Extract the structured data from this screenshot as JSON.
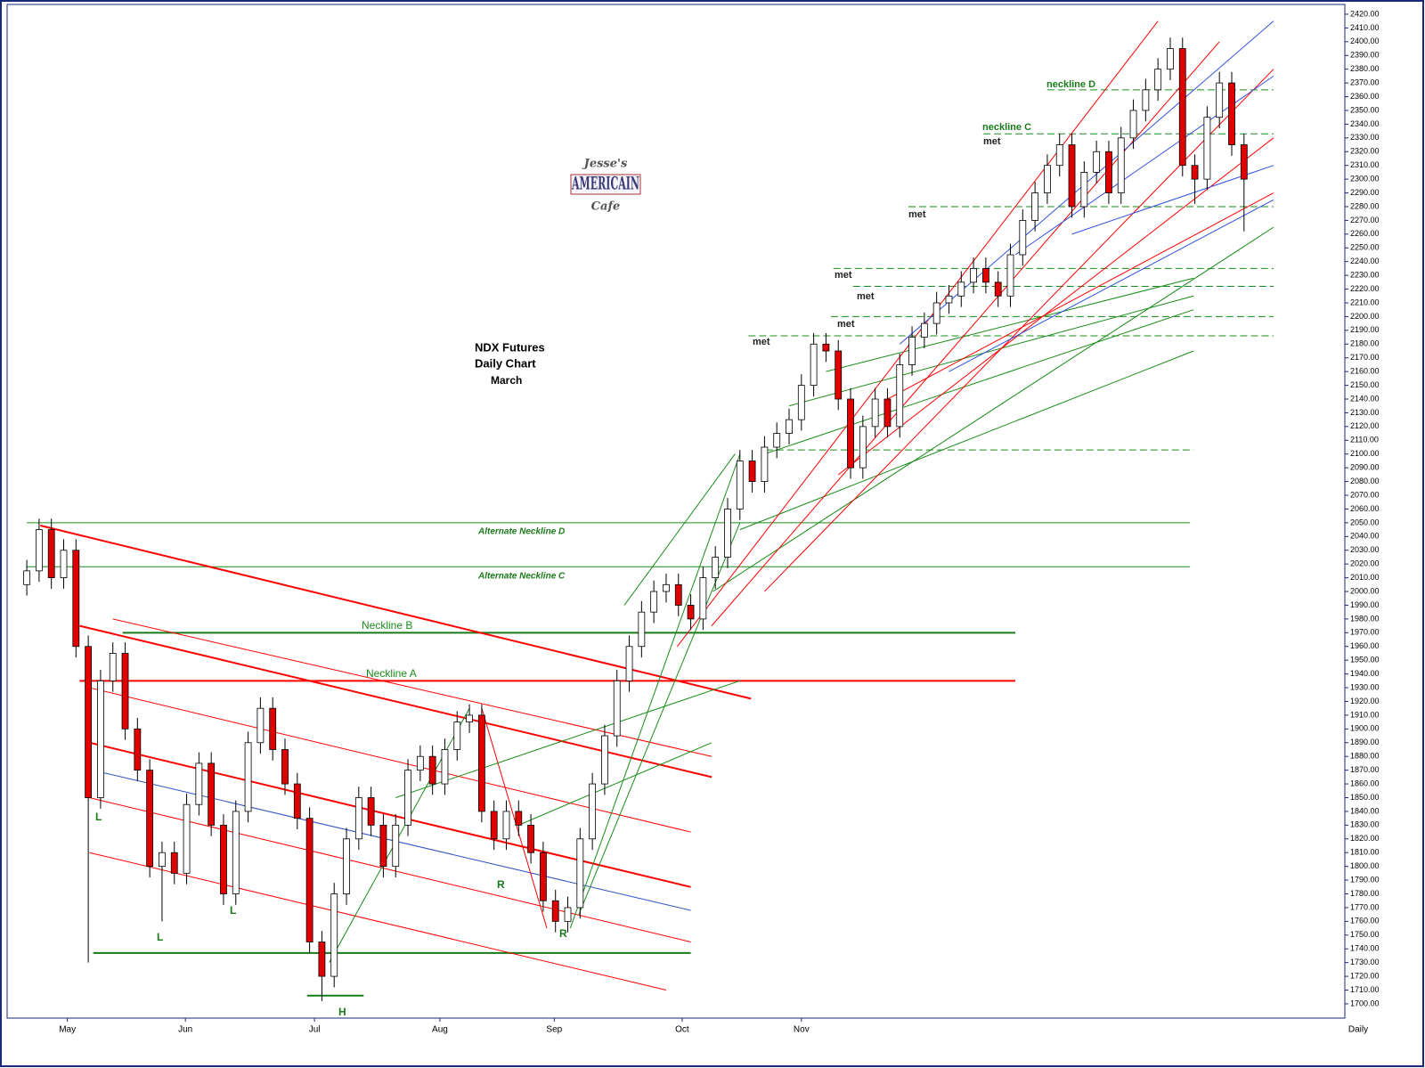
{
  "chart_data": {
    "type": "candlestick",
    "period": "Daily",
    "up_color": "#ffffff",
    "down_color": "#e00000",
    "categories": [
      null,
      null,
      null,
      null,
      null,
      null,
      null,
      null,
      null,
      null,
      null,
      null,
      null,
      null,
      null,
      null,
      null,
      null,
      null,
      null,
      null,
      null,
      null,
      null,
      null,
      null,
      null,
      null,
      null,
      null,
      null,
      null,
      null,
      null,
      null,
      null,
      null,
      null,
      null,
      null,
      null,
      null,
      null,
      null,
      null,
      null,
      null,
      null,
      null,
      null,
      null,
      null,
      null,
      null,
      null,
      null,
      null,
      null,
      null,
      null,
      null,
      null,
      null,
      null,
      null,
      null,
      null,
      null,
      null,
      null,
      null,
      null,
      null,
      null,
      null,
      null,
      null,
      null,
      null,
      null,
      null,
      null,
      null,
      null,
      null,
      null,
      null,
      null,
      null,
      null,
      null,
      null,
      null,
      null,
      null,
      null,
      null,
      null,
      null,
      null
    ],
    "open": [
      2005,
      2015,
      2045,
      2010,
      2030,
      1960,
      1850,
      1935,
      1955,
      1900,
      1870,
      1800,
      1810,
      1795,
      1845,
      1875,
      1830,
      1780,
      1840,
      1890,
      1915,
      1885,
      1860,
      1835,
      1745,
      1720,
      1780,
      1820,
      1850,
      1830,
      1800,
      1830,
      1870,
      1880,
      1860,
      1885,
      1905,
      1910,
      1840,
      1820,
      1840,
      1830,
      1810,
      1775,
      1760,
      1770,
      1820,
      1860,
      1895,
      1935,
      1960,
      1985,
      2000,
      2005,
      1990,
      1980,
      2010,
      2025,
      2060,
      2095,
      2080,
      2105,
      2115,
      2125,
      2150,
      2180,
      2175,
      2140,
      2090,
      2120,
      2140,
      2120,
      2165,
      2185,
      2195,
      2210,
      2215,
      2225,
      2235,
      2225,
      2215,
      2245,
      2270,
      2290,
      2310,
      2325,
      2280,
      2305,
      2320,
      2290,
      2330,
      2350,
      2365,
      2380,
      2395,
      2310,
      2300,
      2345,
      2370,
      2325
    ],
    "high": [
      2023,
      2053,
      2053,
      2038,
      2038,
      1968,
      1943,
      1963,
      1963,
      1908,
      1878,
      1818,
      1818,
      1853,
      1883,
      1883,
      1838,
      1848,
      1898,
      1923,
      1923,
      1893,
      1868,
      1843,
      1753,
      1788,
      1828,
      1858,
      1858,
      1838,
      1838,
      1878,
      1888,
      1888,
      1893,
      1913,
      1918,
      1918,
      1848,
      1848,
      1848,
      1838,
      1818,
      1783,
      1778,
      1828,
      1868,
      1903,
      1943,
      1968,
      1993,
      2008,
      2013,
      2013,
      1998,
      2018,
      2033,
      2068,
      2103,
      2103,
      2113,
      2123,
      2133,
      2158,
      2188,
      2188,
      2183,
      2148,
      2128,
      2148,
      2148,
      2173,
      2193,
      2203,
      2218,
      2223,
      2233,
      2243,
      2243,
      2233,
      2253,
      2278,
      2298,
      2318,
      2333,
      2333,
      2313,
      2328,
      2328,
      2338,
      2358,
      2373,
      2388,
      2403,
      2403,
      2318,
      2353,
      2378,
      2378,
      2333
    ],
    "low": [
      1997,
      2007,
      2002,
      2002,
      1952,
      1730,
      1842,
      1927,
      1892,
      1862,
      1792,
      1760,
      1787,
      1787,
      1837,
      1822,
      1772,
      1772,
      1832,
      1882,
      1877,
      1852,
      1827,
      1737,
      1702,
      1712,
      1772,
      1812,
      1822,
      1792,
      1792,
      1822,
      1862,
      1852,
      1852,
      1877,
      1897,
      1832,
      1812,
      1812,
      1822,
      1802,
      1767,
      1752,
      1752,
      1762,
      1812,
      1852,
      1887,
      1927,
      1952,
      1977,
      1992,
      1982,
      1972,
      1972,
      2002,
      2017,
      2052,
      2072,
      2072,
      2097,
      2107,
      2117,
      2142,
      2167,
      2132,
      2082,
      2082,
      2112,
      2112,
      2112,
      2157,
      2177,
      2187,
      2202,
      2207,
      2217,
      2217,
      2207,
      2207,
      2237,
      2262,
      2282,
      2302,
      2272,
      2272,
      2297,
      2282,
      2282,
      2322,
      2342,
      2357,
      2372,
      2302,
      2282,
      2292,
      2337,
      2317,
      2262
    ],
    "close": [
      2015,
      2045,
      2010,
      2030,
      1960,
      1850,
      1935,
      1955,
      1900,
      1870,
      1800,
      1810,
      1795,
      1845,
      1875,
      1830,
      1780,
      1840,
      1890,
      1915,
      1885,
      1860,
      1835,
      1745,
      1720,
      1780,
      1820,
      1850,
      1830,
      1800,
      1830,
      1870,
      1880,
      1860,
      1885,
      1905,
      1910,
      1840,
      1820,
      1840,
      1830,
      1810,
      1775,
      1760,
      1770,
      1820,
      1860,
      1895,
      1935,
      1960,
      1985,
      2000,
      2005,
      1990,
      1980,
      2010,
      2025,
      2060,
      2095,
      2080,
      2105,
      2115,
      2125,
      2150,
      2180,
      2175,
      2140,
      2090,
      2120,
      2140,
      2120,
      2165,
      2185,
      2195,
      2210,
      2215,
      2225,
      2235,
      2225,
      2215,
      2245,
      2270,
      2290,
      2310,
      2325,
      2280,
      2305,
      2320,
      2290,
      2330,
      2350,
      2365,
      2380,
      2395,
      2310,
      2300,
      2345,
      2370,
      2325,
      2300
    ],
    "xlim": [
      -1.6,
      107.2
    ],
    "xticks": [
      {
        "value": 3.3,
        "label": "May"
      },
      {
        "value": 12.9,
        "label": "Jun"
      },
      {
        "value": 23.4,
        "label": "Jul"
      },
      {
        "value": 33.6,
        "label": "Aug"
      },
      {
        "value": 42.9,
        "label": "Sep"
      },
      {
        "value": 53.3,
        "label": "Oct"
      },
      {
        "value": 63,
        "label": "Nov"
      }
    ],
    "ylim": [
      1689.6,
      2427.1
    ],
    "yticks": [
      {
        "value": 1700,
        "label": "1700.00"
      },
      {
        "value": 1710,
        "label": "1710.00"
      },
      {
        "value": 1720,
        "label": "1720.00"
      },
      {
        "value": 1730,
        "label": "1730.00"
      },
      {
        "value": 1740,
        "label": "1740.00"
      },
      {
        "value": 1750,
        "label": "1750.00"
      },
      {
        "value": 1760,
        "label": "1760.00"
      },
      {
        "value": 1770,
        "label": "1770.00"
      },
      {
        "value": 1780,
        "label": "1780.00"
      },
      {
        "value": 1790,
        "label": "1790.00"
      },
      {
        "value": 1800,
        "label": "1800.00"
      },
      {
        "value": 1810,
        "label": "1810.00"
      },
      {
        "value": 1820,
        "label": "1820.00"
      },
      {
        "value": 1830,
        "label": "1830.00"
      },
      {
        "value": 1840,
        "label": "1840.00"
      },
      {
        "value": 1850,
        "label": "1850.00"
      },
      {
        "value": 1860,
        "label": "1860.00"
      },
      {
        "value": 1870,
        "label": "1870.00"
      },
      {
        "value": 1880,
        "label": "1880.00"
      },
      {
        "value": 1890,
        "label": "1890.00"
      },
      {
        "value": 1900,
        "label": "1900.00"
      },
      {
        "value": 1910,
        "label": "1910.00"
      },
      {
        "value": 1920,
        "label": "1920.00"
      },
      {
        "value": 1930,
        "label": "1930.00"
      },
      {
        "value": 1940,
        "label": "1940.00"
      },
      {
        "value": 1950,
        "label": "1950.00"
      },
      {
        "value": 1960,
        "label": "1960.00"
      },
      {
        "value": 1970,
        "label": "1970.00"
      },
      {
        "value": 1980,
        "label": "1980.00"
      },
      {
        "value": 1990,
        "label": "1990.00"
      },
      {
        "value": 2000,
        "label": "2000.00"
      },
      {
        "value": 2010,
        "label": "2010.00"
      },
      {
        "value": 2020,
        "label": "2020.00"
      },
      {
        "value": 2030,
        "label": "2030.00"
      },
      {
        "value": 2040,
        "label": "2040.00"
      },
      {
        "value": 2050,
        "label": "2050.00"
      },
      {
        "value": 2060,
        "label": "2060.00"
      },
      {
        "value": 2070,
        "label": "2070.00"
      },
      {
        "value": 2080,
        "label": "2080.00"
      },
      {
        "value": 2090,
        "label": "2090.00"
      },
      {
        "value": 2100,
        "label": "2100.00"
      },
      {
        "value": 2110,
        "label": "2110.00"
      },
      {
        "value": 2120,
        "label": "2120.00"
      },
      {
        "value": 2130,
        "label": "2130.00"
      },
      {
        "value": 2140,
        "label": "2140.00"
      },
      {
        "value": 2150,
        "label": "2150.00"
      },
      {
        "value": 2160,
        "label": "2160.00"
      },
      {
        "value": 2170,
        "label": "2170.00"
      },
      {
        "value": 2180,
        "label": "2180.00"
      },
      {
        "value": 2190,
        "label": "2190.00"
      },
      {
        "value": 2200,
        "label": "2200.00"
      },
      {
        "value": 2210,
        "label": "2210.00"
      },
      {
        "value": 2220,
        "label": "2220.00"
      },
      {
        "value": 2230,
        "label": "2230.00"
      },
      {
        "value": 2240,
        "label": "2240.00"
      },
      {
        "value": 2250,
        "label": "2250.00"
      },
      {
        "value": 2260,
        "label": "2260.00"
      },
      {
        "value": 2270,
        "label": "2270.00"
      },
      {
        "value": 2280,
        "label": "2280.00"
      },
      {
        "value": 2290,
        "label": "2290.00"
      },
      {
        "value": 2300,
        "label": "2300.00"
      },
      {
        "value": 2310,
        "label": "2310.00"
      },
      {
        "value": 2320,
        "label": "2320.00"
      },
      {
        "value": 2330,
        "label": "2330.00"
      },
      {
        "value": 2340,
        "label": "2340.00"
      },
      {
        "value": 2350,
        "label": "2350.00"
      },
      {
        "value": 2360,
        "label": "2360.00"
      },
      {
        "value": 2370,
        "label": "2370.00"
      },
      {
        "value": 2380,
        "label": "2380.00"
      },
      {
        "value": 2390,
        "label": "2390.00"
      },
      {
        "value": 2400,
        "label": "2400.00"
      },
      {
        "value": 2410,
        "label": "2410.00"
      },
      {
        "value": 2420,
        "label": "2420.00"
      }
    ],
    "levels": [
      {
        "y": 2050,
        "x": [
          0,
          94.6
        ],
        "color": "#1a8c1a",
        "width": 1,
        "dash": false
      },
      {
        "y": 2018,
        "x": [
          0,
          94.6
        ],
        "color": "#1a8c1a",
        "width": 1,
        "dash": false
      },
      {
        "y": 1970,
        "x": [
          7.8,
          80.4
        ],
        "color": "#1a7a1a",
        "width": 2,
        "dash": false
      },
      {
        "y": 1935,
        "x": [
          4.3,
          80.4
        ],
        "color": "#ff0000",
        "width": 2,
        "dash": false
      },
      {
        "y": 1737,
        "x": [
          5.4,
          54
        ],
        "color": "#1a7a1a",
        "width": 2,
        "dash": false
      },
      {
        "y": 1706,
        "x": [
          22.8,
          27.4
        ],
        "color": "#1a7a1a",
        "width": 2,
        "dash": false
      },
      {
        "y": 2365,
        "x": [
          83,
          101.4
        ],
        "color": "#1a8c1a",
        "width": 1,
        "dash": true
      },
      {
        "y": 2333,
        "x": [
          77.8,
          101.4
        ],
        "color": "#1a8c1a",
        "width": 1,
        "dash": true
      },
      {
        "y": 2280,
        "x": [
          71.7,
          101.4
        ],
        "color": "#1a8c1a",
        "width": 1,
        "dash": true
      },
      {
        "y": 2235,
        "x": [
          65.6,
          101.4
        ],
        "color": "#1a8c1a",
        "width": 1,
        "dash": true
      },
      {
        "y": 2222,
        "x": [
          67.2,
          101.4
        ],
        "color": "#1a8c1a",
        "width": 1,
        "dash": true
      },
      {
        "y": 2200,
        "x": [
          65.4,
          101.4
        ],
        "color": "#1a8c1a",
        "width": 1,
        "dash": true
      },
      {
        "y": 2186,
        "x": [
          58.7,
          101.4
        ],
        "color": "#1a8c1a",
        "width": 1,
        "dash": true
      },
      {
        "y": 2103,
        "x": [
          60.1,
          94.9
        ],
        "color": "#1a8c1a",
        "width": 1,
        "dash": true
      }
    ],
    "trendlines": [
      {
        "x": [
          1.1,
          58.9
        ],
        "y": [
          2048,
          1922
        ],
        "color": "#ff0000",
        "width": 2
      },
      {
        "x": [
          4.3,
          55.7
        ],
        "y": [
          1975,
          1865
        ],
        "color": "#ff0000",
        "width": 2
      },
      {
        "x": [
          5.1,
          54
        ],
        "y": [
          1930,
          1825
        ],
        "color": "#ff0000",
        "width": 1
      },
      {
        "x": [
          5.1,
          54
        ],
        "y": [
          1890,
          1785
        ],
        "color": "#ff0000",
        "width": 2
      },
      {
        "x": [
          5.1,
          54
        ],
        "y": [
          1850,
          1745
        ],
        "color": "#ff0000",
        "width": 1
      },
      {
        "x": [
          5.1,
          52
        ],
        "y": [
          1810,
          1710
        ],
        "color": "#ff0000",
        "width": 1
      },
      {
        "x": [
          7,
          55.7
        ],
        "y": [
          1980,
          1880
        ],
        "color": "#ff0000",
        "width": 1
      },
      {
        "x": [
          6.3,
          54
        ],
        "y": [
          1868,
          1768
        ],
        "color": "#3050c0",
        "width": 1
      },
      {
        "x": [
          37,
          42.3
        ],
        "y": [
          1915,
          1755
        ],
        "color": "#ff0000",
        "width": 1
      },
      {
        "x": [
          24.6,
          36
        ],
        "y": [
          1730,
          1915
        ],
        "color": "#1a8c1a",
        "width": 1
      },
      {
        "x": [
          44.2,
          58
        ],
        "y": [
          1755,
          2100
        ],
        "color": "#1a8c1a",
        "width": 1
      },
      {
        "x": [
          44.9,
          58
        ],
        "y": [
          1765,
          2050
        ],
        "color": "#1a8c1a",
        "width": 1
      },
      {
        "x": [
          48.6,
          57.6
        ],
        "y": [
          1990,
          2100
        ],
        "color": "#1a8c1a",
        "width": 1
      },
      {
        "x": [
          55.8,
          101.4
        ],
        "y": [
          2000,
          2265
        ],
        "color": "#1a8c1a",
        "width": 1
      },
      {
        "x": [
          58,
          94.9
        ],
        "y": [
          2045,
          2175
        ],
        "color": "#1a8c1a",
        "width": 1
      },
      {
        "x": [
          60,
          94.9
        ],
        "y": [
          2100,
          2205
        ],
        "color": "#1a8c1a",
        "width": 1
      },
      {
        "x": [
          62,
          94.9
        ],
        "y": [
          2135,
          2215
        ],
        "color": "#1a8c1a",
        "width": 1
      },
      {
        "x": [
          65,
          94.9
        ],
        "y": [
          2160,
          2228
        ],
        "color": "#1a8c1a",
        "width": 1
      },
      {
        "x": [
          30,
          58
        ],
        "y": [
          1850,
          1935
        ],
        "color": "#1a8c1a",
        "width": 1
      },
      {
        "x": [
          40,
          55.7
        ],
        "y": [
          1830,
          1890
        ],
        "color": "#1a8c1a",
        "width": 1
      },
      {
        "x": [
          52.9,
          92
        ],
        "y": [
          1960,
          2415
        ],
        "color": "#ff0000",
        "width": 1
      },
      {
        "x": [
          55.7,
          97
        ],
        "y": [
          1975,
          2400
        ],
        "color": "#ff0000",
        "width": 1
      },
      {
        "x": [
          60,
          101.4
        ],
        "y": [
          2000,
          2380
        ],
        "color": "#ff0000",
        "width": 1
      },
      {
        "x": [
          66,
          101.4
        ],
        "y": [
          2085,
          2330
        ],
        "color": "#ff0000",
        "width": 1
      },
      {
        "x": [
          70,
          101.4
        ],
        "y": [
          2140,
          2290
        ],
        "color": "#ff0000",
        "width": 1
      },
      {
        "x": [
          71,
          101.4
        ],
        "y": [
          2180,
          2415
        ],
        "color": "#3050e0",
        "width": 1
      },
      {
        "x": [
          80.4,
          101.4
        ],
        "y": [
          2245,
          2375
        ],
        "color": "#3050e0",
        "width": 1
      },
      {
        "x": [
          85,
          101.4
        ],
        "y": [
          2260,
          2310
        ],
        "color": "#3050e0",
        "width": 1
      },
      {
        "x": [
          75,
          101.4
        ],
        "y": [
          2160,
          2285
        ],
        "color": "#3050e0",
        "width": 1
      }
    ],
    "annotations": [
      "NDX  Futures",
      "Daily Chart",
      "March",
      "Alternate Neckline D",
      "Alternate Neckline C",
      "Neckline B",
      "Neckline A",
      "neckline D",
      "neckline C",
      "met",
      "met",
      "met",
      "met",
      "met",
      "met",
      "L",
      "L",
      "L",
      "H",
      "R",
      "R"
    ],
    "logo": [
      "Jesse's",
      "AMERICAIN",
      "Cafe"
    ]
  }
}
